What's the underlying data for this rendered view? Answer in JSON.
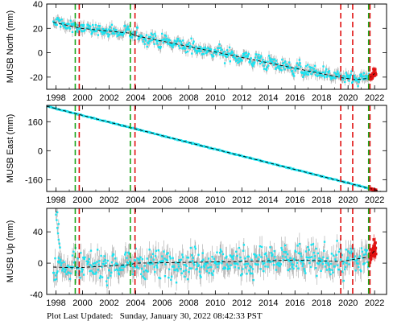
{
  "colors": {
    "data": "#19e3f0",
    "error": "#a8a8a8",
    "recent": "#e01010",
    "trend": "#000000",
    "equipment_change": "#1aa51a",
    "earthquake": "#e01010"
  },
  "footer": {
    "label": "Plot Last Updated:",
    "timestamp": "Sunday, January 30, 2022 08:42:33 PST"
  },
  "chart_data": [
    {
      "type": "scatter",
      "ylabel": "MUSB North (mm)",
      "xlim": [
        1997.3,
        2022.9
      ],
      "ylim": [
        -30,
        40
      ],
      "yticks": [
        -20,
        0,
        20,
        40
      ],
      "xticks": [
        1998,
        2000,
        2002,
        2004,
        2006,
        2008,
        2010,
        2012,
        2014,
        2016,
        2018,
        2020,
        2022
      ],
      "trend": [
        [
          1997.8,
          25
        ],
        [
          1999.5,
          21
        ],
        [
          1999.9,
          20
        ],
        [
          2003.6,
          16
        ],
        [
          2004.0,
          14
        ],
        [
          2019.5,
          -20.5
        ],
        [
          2020.5,
          -22
        ],
        [
          2021.6,
          -21
        ],
        [
          2022.0,
          -17
        ]
      ],
      "data_x": [
        1997.8,
        2021.6
      ],
      "recent_x": [
        2021.6,
        2022.1
      ],
      "green_lines": [
        1999.45,
        2003.6,
        2021.55
      ],
      "red_lines": [
        1999.75,
        2003.95,
        2019.45,
        2020.35,
        2021.65
      ],
      "noise": 2.5,
      "error": 3.5,
      "seasonal": 2
    },
    {
      "type": "scatter",
      "ylabel": "MUSB East (mm)",
      "xlim": [
        1997.3,
        2022.9
      ],
      "ylim": [
        -225,
        250
      ],
      "yticks": [
        -160,
        0,
        160
      ],
      "xticks": [
        1998,
        2000,
        2002,
        2004,
        2006,
        2008,
        2010,
        2012,
        2014,
        2016,
        2018,
        2020,
        2022
      ],
      "trend": [
        [
          1997.3,
          245
        ],
        [
          2022.5,
          -225
        ]
      ],
      "data_x": [
        1997.3,
        2021.6
      ],
      "recent_x": [
        2021.6,
        2022.1
      ],
      "green_lines": [
        1999.45,
        2003.6,
        2021.55
      ],
      "red_lines": [
        1999.75,
        2003.95,
        2019.45,
        2020.35,
        2021.65
      ],
      "noise": 1.5,
      "error": 2.5,
      "seasonal": 0
    },
    {
      "type": "scatter",
      "ylabel": "MUSB Up (mm)",
      "xlim": [
        1997.3,
        2022.9
      ],
      "ylim": [
        -40,
        70
      ],
      "yticks": [
        -40,
        0,
        40
      ],
      "xticks": [
        1998,
        2000,
        2002,
        2004,
        2006,
        2008,
        2010,
        2012,
        2014,
        2016,
        2018,
        2020,
        2022
      ],
      "trend": [
        [
          1997.8,
          -5
        ],
        [
          1999.5,
          -6
        ],
        [
          2003.6,
          -2
        ],
        [
          2004.0,
          0
        ],
        [
          2012,
          2
        ],
        [
          2016,
          4
        ],
        [
          2019.5,
          2
        ],
        [
          2021.6,
          8
        ],
        [
          2022.0,
          16
        ]
      ],
      "data_x": [
        1997.8,
        2021.6
      ],
      "recent_x": [
        2021.6,
        2022.1
      ],
      "green_lines": [
        1999.45,
        2003.6,
        2021.55
      ],
      "red_lines": [
        1999.75,
        2003.95,
        2019.45,
        2020.35,
        2021.65
      ],
      "noise": 9,
      "error": 11,
      "seasonal": 4,
      "outliers": [
        [
          1998.0,
          62
        ],
        [
          1998.05,
          55
        ],
        [
          1998.1,
          45
        ],
        [
          1998.15,
          38
        ],
        [
          1998.2,
          30
        ],
        [
          1998.25,
          25
        ],
        [
          1998.3,
          20
        ],
        [
          1998.1,
          65
        ],
        [
          1998.2,
          50
        ]
      ]
    }
  ]
}
